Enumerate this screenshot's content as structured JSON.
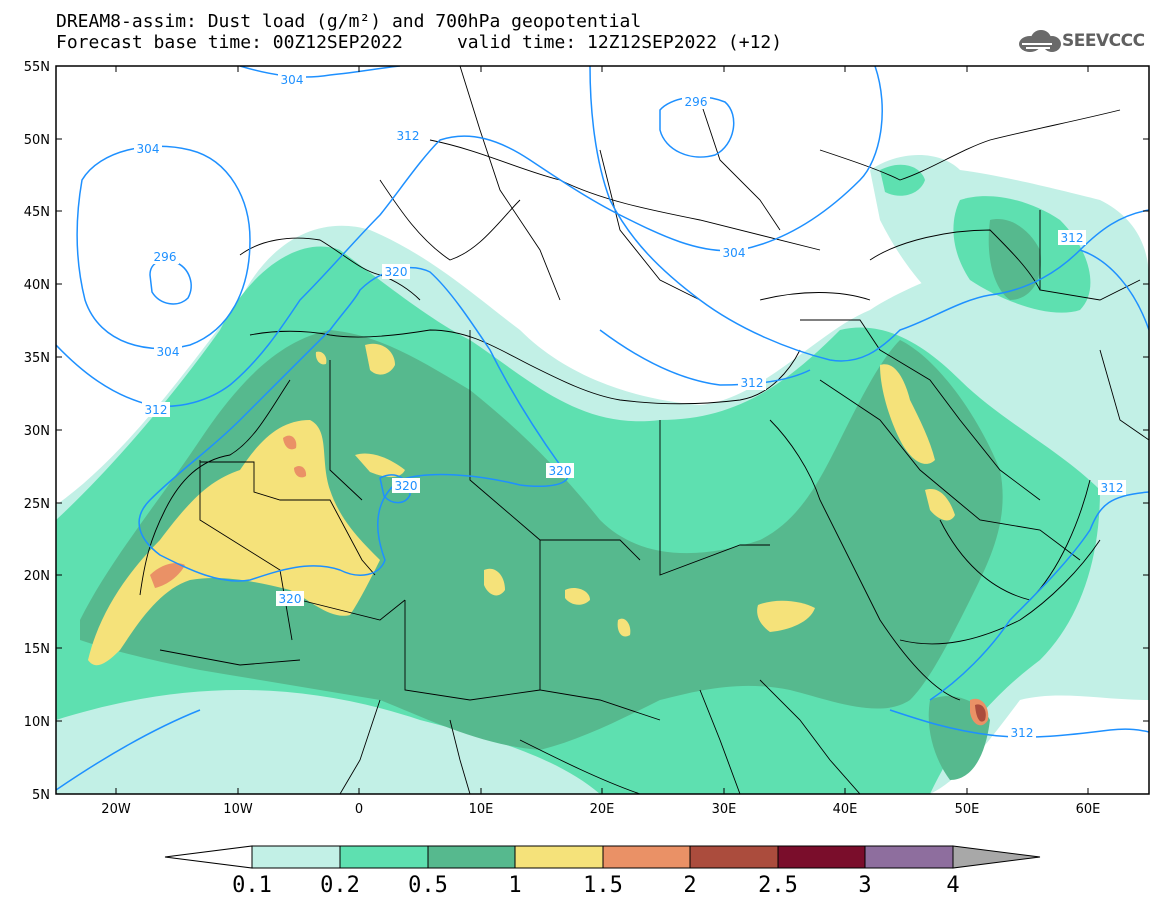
{
  "title": {
    "line1": "DREAM8-assim: Dust load (g/m²) and 700hPa geopotential",
    "line2_left": "Forecast base time: 00Z12SEP2022",
    "line2_right": "valid time: 12Z12SEP2022 (+12)"
  },
  "logo": {
    "text": "SEEVCCC",
    "icon": "cloud-icon"
  },
  "axes": {
    "lat_ticks": [
      "55N",
      "50N",
      "45N",
      "40N",
      "35N",
      "30N",
      "25N",
      "20N",
      "15N",
      "10N",
      "5N"
    ],
    "lon_ticks": [
      "20W",
      "10W",
      "0",
      "10E",
      "20E",
      "30E",
      "40E",
      "50E",
      "60E"
    ]
  },
  "contours": {
    "color": "#1e90ff",
    "labels": [
      "304",
      "296",
      "312",
      "304",
      "296",
      "304",
      "312",
      "320",
      "320",
      "320",
      "320",
      "312",
      "312",
      "312",
      "304",
      "312"
    ]
  },
  "colorbar": {
    "labels": [
      "0.1",
      "0.2",
      "0.5",
      "1",
      "1.5",
      "2",
      "2.5",
      "3",
      "4"
    ],
    "colors": [
      "#c2f0e6",
      "#5ee0b0",
      "#56b98e",
      "#f5e27a",
      "#ea9166",
      "#ab4c3d",
      "#7a0d2b",
      "#8e6e9e",
      "#a8a8a8"
    ]
  }
}
